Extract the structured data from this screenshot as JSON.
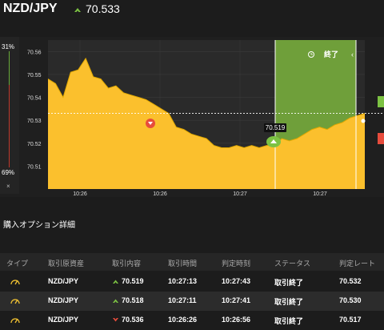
{
  "header": {
    "pair": "NZD/JPY",
    "price": "70.533",
    "direction_icon": "up-arrow-icon"
  },
  "side": {
    "top_pct": "31%",
    "bottom_pct": "69%",
    "close_symbol": "×"
  },
  "chart": {
    "y_ticks": [
      "70.56",
      "70.55",
      "70.54",
      "70.53",
      "70.52",
      "70.51"
    ],
    "x_ticks": [
      "10:26",
      "10:26",
      "10:27",
      "10:27"
    ],
    "current_label": "70.519",
    "end_label": "終了",
    "clock_icon": "clock-icon",
    "colors": {
      "area": "#fbc02d",
      "zone": "#6f9f3a",
      "up": "#7cc243",
      "down": "#e74c3c"
    }
  },
  "chart_data": {
    "type": "area",
    "y_ticks": [
      70.56,
      70.55,
      70.54,
      70.53,
      70.52,
      70.51
    ],
    "ylim": [
      70.5,
      70.565
    ],
    "x_tick_labels": [
      "10:26",
      "10:26",
      "10:27",
      "10:27"
    ],
    "reference_value": 70.533,
    "values": [
      70.548,
      70.546,
      70.54,
      70.551,
      70.552,
      70.557,
      70.549,
      70.548,
      70.544,
      70.545,
      70.542,
      70.541,
      70.54,
      70.539,
      70.537,
      70.535,
      70.533,
      70.527,
      70.526,
      70.524,
      70.523,
      70.522,
      70.519,
      70.518,
      70.518,
      70.519,
      70.518,
      70.519,
      70.518,
      70.519,
      70.519,
      70.522,
      70.521,
      70.522,
      70.524,
      70.526,
      70.527,
      70.526,
      70.528,
      70.529,
      70.531,
      70.532,
      70.533
    ]
  },
  "section": {
    "title": "購入オプション詳細"
  },
  "table": {
    "headers": [
      "タイプ",
      "取引原資産",
      "取引内容",
      "取引時間",
      "判定時刻",
      "ステータス",
      "判定レート"
    ],
    "rows": [
      {
        "type_icon": "gauge-icon",
        "asset": "NZD/JPY",
        "direction": "up",
        "rate": "70.519",
        "trade_time": "10:27:13",
        "judge_time": "10:27:43",
        "status": "取引終了",
        "judge_rate": "70.532"
      },
      {
        "type_icon": "gauge-icon",
        "asset": "NZD/JPY",
        "direction": "up",
        "rate": "70.518",
        "trade_time": "10:27:11",
        "judge_time": "10:27:41",
        "status": "取引終了",
        "judge_rate": "70.530"
      },
      {
        "type_icon": "gauge-icon",
        "asset": "NZD/JPY",
        "direction": "down",
        "rate": "70.536",
        "trade_time": "10:26:26",
        "judge_time": "10:26:56",
        "status": "取引終了",
        "judge_rate": "70.517"
      }
    ]
  }
}
